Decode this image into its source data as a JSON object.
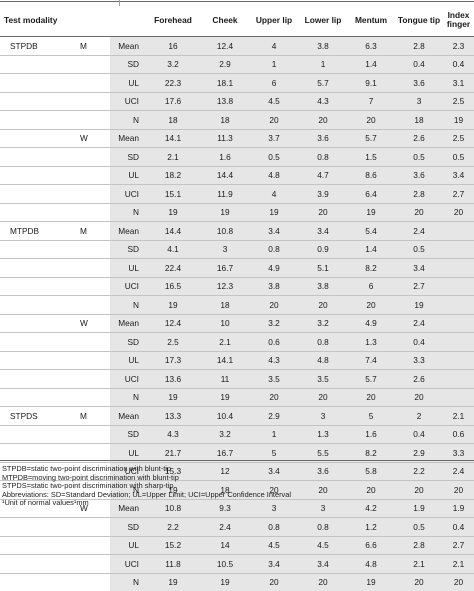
{
  "columns": [
    "Test modality",
    "",
    "",
    "Forehead",
    "Cheek",
    "Upper lip",
    "Lower lip",
    "Mentum",
    "Tongue tip",
    "Index finger"
  ],
  "rows": [
    {
      "modality": "STPDB",
      "sex": "M",
      "stat": "Mean",
      "values": [
        "16",
        "12.4",
        "4",
        "3.8",
        "6.3",
        "2.8",
        "2.3"
      ]
    },
    {
      "modality": "",
      "sex": "",
      "stat": "SD",
      "values": [
        "3.2",
        "2.9",
        "1",
        "1",
        "1.4",
        "0.4",
        "0.4"
      ]
    },
    {
      "modality": "",
      "sex": "",
      "stat": "UL",
      "values": [
        "22.3",
        "18.1",
        "6",
        "5.7",
        "9.1",
        "3.6",
        "3.1"
      ]
    },
    {
      "modality": "",
      "sex": "",
      "stat": "UCI",
      "values": [
        "17.6",
        "13.8",
        "4.5",
        "4.3",
        "7",
        "3",
        "2.5"
      ]
    },
    {
      "modality": "",
      "sex": "",
      "stat": "N",
      "values": [
        "18",
        "18",
        "20",
        "20",
        "20",
        "18",
        "19"
      ]
    },
    {
      "modality": "",
      "sex": "W",
      "stat": "Mean",
      "values": [
        "14.1",
        "11.3",
        "3.7",
        "3.6",
        "5.7",
        "2.6",
        "2.5"
      ]
    },
    {
      "modality": "",
      "sex": "",
      "stat": "SD",
      "values": [
        "2.1",
        "1.6",
        "0.5",
        "0.8",
        "1.5",
        "0.5",
        "0.5"
      ]
    },
    {
      "modality": "",
      "sex": "",
      "stat": "UL",
      "values": [
        "18.2",
        "14.4",
        "4.8",
        "4.7",
        "8.6",
        "3.6",
        "3.4"
      ]
    },
    {
      "modality": "",
      "sex": "",
      "stat": "UCI",
      "values": [
        "15.1",
        "11.9",
        "4",
        "3.9",
        "6.4",
        "2.8",
        "2.7"
      ]
    },
    {
      "modality": "",
      "sex": "",
      "stat": "N",
      "values": [
        "19",
        "19",
        "19",
        "20",
        "19",
        "20",
        "20"
      ]
    },
    {
      "modality": "MTPDB",
      "sex": "M",
      "stat": "Mean",
      "values": [
        "14.4",
        "10.8",
        "3.4",
        "3.4",
        "5.4",
        "2.4",
        ""
      ]
    },
    {
      "modality": "",
      "sex": "",
      "stat": "SD",
      "values": [
        "4.1",
        "3",
        "0.8",
        "0.9",
        "1.4",
        "0.5",
        ""
      ]
    },
    {
      "modality": "",
      "sex": "",
      "stat": "UL",
      "values": [
        "22.4",
        "16.7",
        "4.9",
        "5.1",
        "8.2",
        "3.4",
        ""
      ]
    },
    {
      "modality": "",
      "sex": "",
      "stat": "UCI",
      "values": [
        "16.5",
        "12.3",
        "3.8",
        "3.8",
        "6",
        "2.7",
        ""
      ]
    },
    {
      "modality": "",
      "sex": "",
      "stat": "N",
      "values": [
        "19",
        "18",
        "20",
        "20",
        "20",
        "19",
        ""
      ]
    },
    {
      "modality": "",
      "sex": "W",
      "stat": "Mean",
      "values": [
        "12.4",
        "10",
        "3.2",
        "3.2",
        "4.9",
        "2.4",
        ""
      ]
    },
    {
      "modality": "",
      "sex": "",
      "stat": "SD",
      "values": [
        "2.5",
        "2.1",
        "0.6",
        "0.8",
        "1.3",
        "0.4",
        ""
      ]
    },
    {
      "modality": "",
      "sex": "",
      "stat": "UL",
      "values": [
        "17.3",
        "14.1",
        "4.3",
        "4.8",
        "7.4",
        "3.3",
        ""
      ]
    },
    {
      "modality": "",
      "sex": "",
      "stat": "UCI",
      "values": [
        "13.6",
        "11",
        "3.5",
        "3.5",
        "5.7",
        "2.6",
        ""
      ]
    },
    {
      "modality": "",
      "sex": "",
      "stat": "N",
      "values": [
        "19",
        "19",
        "20",
        "20",
        "20",
        "20",
        ""
      ]
    },
    {
      "modality": "STPDS",
      "sex": "M",
      "stat": "Mean",
      "values": [
        "13.3",
        "10.4",
        "2.9",
        "3",
        "5",
        "2",
        "2.1"
      ]
    },
    {
      "modality": "",
      "sex": "",
      "stat": "SD",
      "values": [
        "4.3",
        "3.2",
        "1",
        "1.3",
        "1.6",
        "0.4",
        "0.6"
      ]
    },
    {
      "modality": "",
      "sex": "",
      "stat": "UL",
      "values": [
        "21.7",
        "16.7",
        "5",
        "5.5",
        "8.2",
        "2.9",
        "3.3"
      ]
    },
    {
      "modality": "",
      "sex": "",
      "stat": "UCI",
      "values": [
        "15.3",
        "12",
        "3.4",
        "3.6",
        "5.8",
        "2.2",
        "2.4"
      ]
    },
    {
      "modality": "",
      "sex": "",
      "stat": "N",
      "values": [
        "19",
        "18",
        "20",
        "20",
        "20",
        "20",
        "20"
      ]
    },
    {
      "modality": "",
      "sex": "W",
      "stat": "Mean",
      "values": [
        "10.8",
        "9.3",
        "3",
        "3",
        "4.2",
        "1.9",
        "1.9"
      ]
    },
    {
      "modality": "",
      "sex": "",
      "stat": "SD",
      "values": [
        "2.2",
        "2.4",
        "0.8",
        "0.8",
        "1.2",
        "0.5",
        "0.4"
      ]
    },
    {
      "modality": "",
      "sex": "",
      "stat": "UL",
      "values": [
        "15.2",
        "14",
        "4.5",
        "4.5",
        "6.6",
        "2.8",
        "2.7"
      ]
    },
    {
      "modality": "",
      "sex": "",
      "stat": "UCI",
      "values": [
        "11.8",
        "10.5",
        "3.4",
        "3.4",
        "4.8",
        "2.1",
        "2.1"
      ]
    },
    {
      "modality": "",
      "sex": "",
      "stat": "N",
      "values": [
        "19",
        "19",
        "20",
        "20",
        "19",
        "20",
        "20"
      ]
    }
  ],
  "footnotes": [
    "STPDB=static two-point discrimination with blunt-tip",
    "MTPDB=moving two-point discrimination with blunt-tip",
    "STPDS=static two-point discrimination with sharp-tip",
    "Abbreviations: SD=Standard Deviation; UL=Upper Limit; UCI=Upper Confidence Interval",
    "¹Unit of normal values¹mm"
  ],
  "colors": {
    "shade": "#e6e6e6",
    "rule": "#6a6a6a",
    "row_rule": "#c4c4c4"
  }
}
